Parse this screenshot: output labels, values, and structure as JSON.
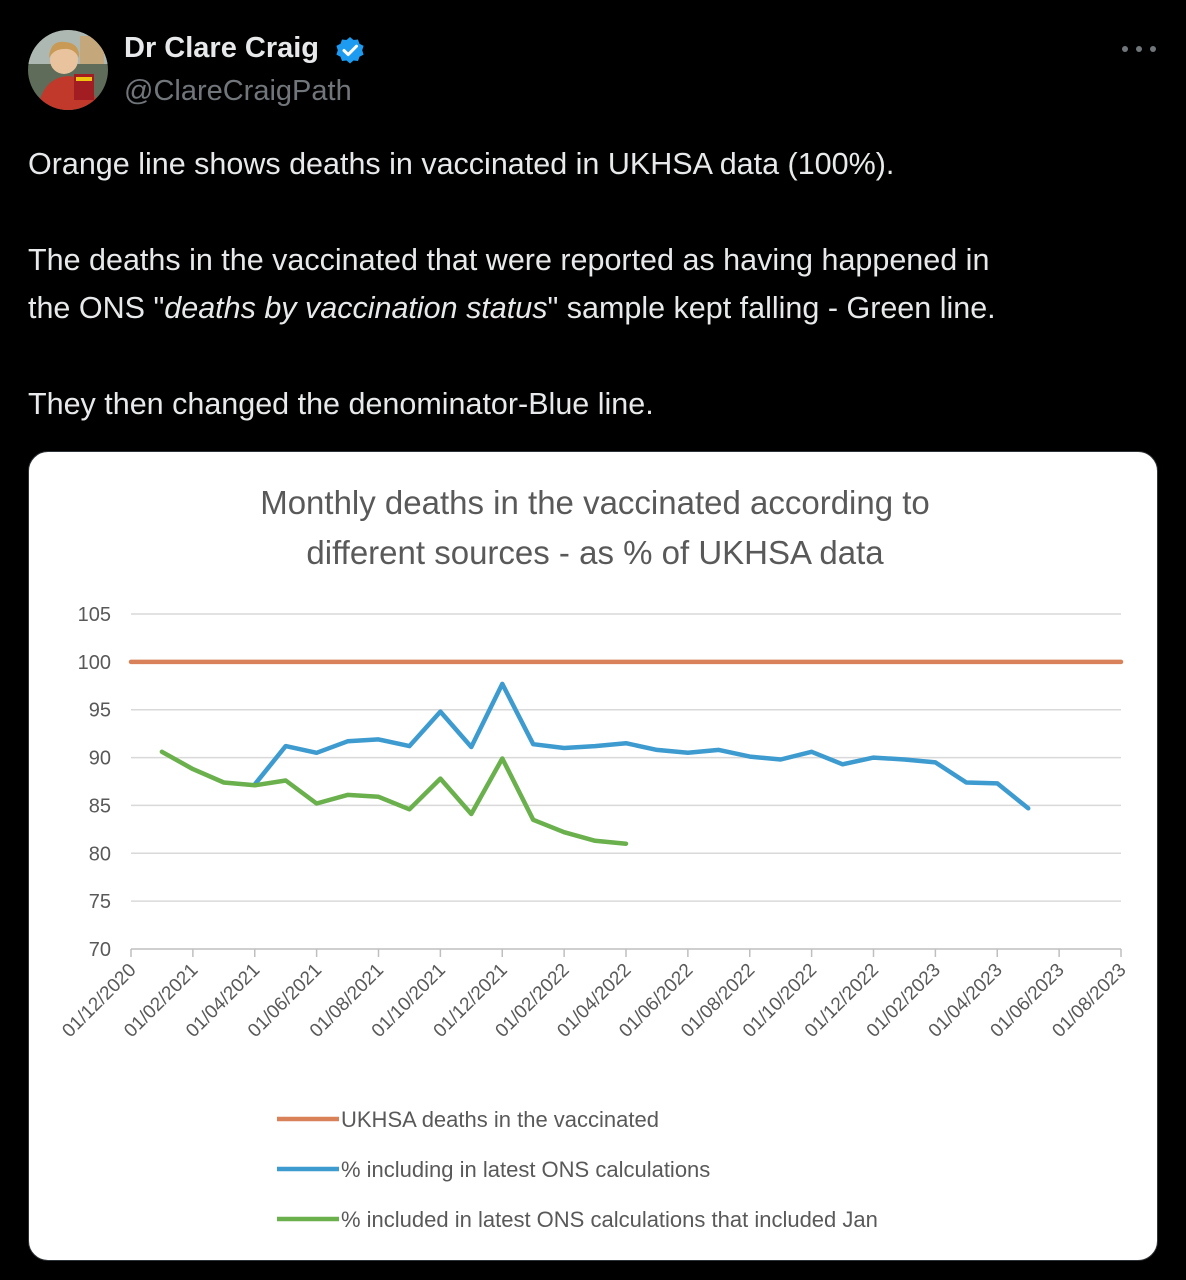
{
  "tweet": {
    "author_name": "Dr Clare Craig",
    "handle": "@ClareCraigPath",
    "paragraph1": "Orange line shows deaths in vaccinated in UKHSA data (100%).",
    "p2_line1": "The deaths in the vaccinated that were reported as having happened in",
    "p2_before": "the ONS \"",
    "p2_italic": "deaths by vaccination status",
    "p2_after": "\" sample kept falling - Green line.",
    "paragraph3": "They then changed the denominator-Blue line."
  },
  "colors": {
    "orange": "#d9825a",
    "blue": "#3d9bd0",
    "green": "#6ab04c",
    "verified": "#1d9bf0"
  },
  "icons": [
    "avatar",
    "verified-badge-icon",
    "more-options-icon"
  ],
  "chart_data": {
    "type": "line",
    "title_line1": "Monthly deaths in the vaccinated according to",
    "title_line2": "different sources - as % of UKHSA data",
    "ylim": [
      70,
      105
    ],
    "yticks": [
      "105",
      "100",
      "95",
      "90",
      "85",
      "80",
      "75",
      "70"
    ],
    "xticks": [
      "01/12/2020",
      "01/02/2021",
      "01/04/2021",
      "01/06/2021",
      "01/08/2021",
      "01/10/2021",
      "01/12/2021",
      "01/02/2022",
      "01/04/2022",
      "01/06/2022",
      "01/08/2022",
      "01/10/2022",
      "01/12/2022",
      "01/02/2023",
      "01/04/2023",
      "01/06/2023",
      "01/08/2023"
    ],
    "grid": true,
    "legend_position": "bottom",
    "series": [
      {
        "name": "UKHSA deaths in the vaccinated",
        "color": "#d9825a",
        "points": [
          [
            "2020-12-01",
            100
          ],
          [
            "2023-08-01",
            100
          ]
        ]
      },
      {
        "name": "% including in latest ONS calculations",
        "color": "#3d9bd0",
        "points": [
          [
            "2021-04-01",
            87.2
          ],
          [
            "2021-05-01",
            91.2
          ],
          [
            "2021-06-01",
            90.5
          ],
          [
            "2021-07-01",
            91.7
          ],
          [
            "2021-08-01",
            91.9
          ],
          [
            "2021-09-01",
            91.2
          ],
          [
            "2021-10-01",
            94.8
          ],
          [
            "2021-11-01",
            91.1
          ],
          [
            "2021-12-01",
            97.7
          ],
          [
            "2022-01-01",
            91.4
          ],
          [
            "2022-02-01",
            91.0
          ],
          [
            "2022-03-01",
            91.2
          ],
          [
            "2022-04-01",
            91.5
          ],
          [
            "2022-05-01",
            90.8
          ],
          [
            "2022-06-01",
            90.5
          ],
          [
            "2022-07-01",
            90.8
          ],
          [
            "2022-08-01",
            90.1
          ],
          [
            "2022-09-01",
            89.8
          ],
          [
            "2022-10-01",
            90.6
          ],
          [
            "2022-11-01",
            89.3
          ],
          [
            "2022-12-01",
            90.0
          ],
          [
            "2023-01-01",
            89.8
          ],
          [
            "2023-02-01",
            89.5
          ],
          [
            "2023-03-01",
            87.4
          ],
          [
            "2023-04-01",
            87.3
          ],
          [
            "2023-05-01",
            84.7
          ]
        ]
      },
      {
        "name": "% included in latest ONS calculations that included Jan",
        "color": "#6ab04c",
        "points": [
          [
            "2021-01-01",
            90.6
          ],
          [
            "2021-02-01",
            88.8
          ],
          [
            "2021-03-01",
            87.4
          ],
          [
            "2021-04-01",
            87.1
          ],
          [
            "2021-05-01",
            87.6
          ],
          [
            "2021-06-01",
            85.2
          ],
          [
            "2021-07-01",
            86.1
          ],
          [
            "2021-08-01",
            85.9
          ],
          [
            "2021-09-01",
            84.6
          ],
          [
            "2021-10-01",
            87.8
          ],
          [
            "2021-11-01",
            84.1
          ],
          [
            "2021-12-01",
            89.9
          ],
          [
            "2022-01-01",
            83.5
          ],
          [
            "2022-02-01",
            82.2
          ],
          [
            "2022-03-01",
            81.3
          ],
          [
            "2022-04-01",
            81.0
          ]
        ]
      }
    ]
  }
}
